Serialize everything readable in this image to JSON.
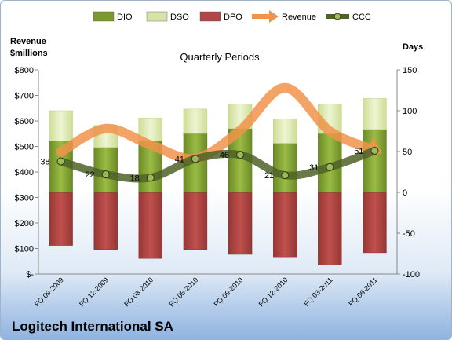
{
  "company": "Logitech International SA",
  "chart_data": {
    "type": "bar",
    "title": "Quarterly Periods",
    "left_axis_title": [
      "Revenue",
      "$millions"
    ],
    "right_axis_title": "Days",
    "categories": [
      "FQ 09-2009",
      "FQ 12-2009",
      "FQ 03-2010",
      "FQ 06-2010",
      "FQ 09-2010",
      "FQ 12-2010",
      "FQ 03-2011",
      "FQ 06-2011"
    ],
    "left_ticks": [
      "$-",
      "$100",
      "$200",
      "$300",
      "$400",
      "$500",
      "$600",
      "$700",
      "$800"
    ],
    "left_ylim": [
      0,
      800
    ],
    "right_ticks": [
      "-100",
      "-50",
      "0",
      "50",
      "100",
      "150"
    ],
    "right_ylim": [
      -100,
      150
    ],
    "legend": [
      "DIO",
      "DSO",
      "DPO",
      "Revenue",
      "CCC"
    ],
    "series": [
      {
        "name": "DIO",
        "axis": "right",
        "kind": "bar-stacked-up",
        "color": "#7a9a2e",
        "values": [
          63,
          55,
          63,
          72,
          78,
          60,
          72,
          77
        ]
      },
      {
        "name": "DSO",
        "axis": "right",
        "kind": "bar-stacked-up",
        "color": "#d7e4a8",
        "values": [
          37,
          27,
          28,
          30,
          30,
          30,
          36,
          38
        ]
      },
      {
        "name": "DPO",
        "axis": "right",
        "kind": "bar-down",
        "color": "#b34745",
        "values": [
          -65,
          -70,
          -81,
          -70,
          -76,
          -79,
          -89,
          -74
        ]
      },
      {
        "name": "Revenue",
        "axis": "left",
        "kind": "line",
        "color": "#f0934a",
        "values": [
          478,
          570,
          506,
          453,
          563,
          730,
          560,
          486
        ]
      },
      {
        "name": "CCC",
        "axis": "right",
        "kind": "line",
        "color": "#4f6228",
        "values": [
          38,
          22,
          18,
          41,
          46,
          21,
          31,
          51
        ]
      }
    ],
    "ccc_labels": [
      "38",
      "22",
      "18",
      "41",
      "46",
      "21",
      "31",
      "51"
    ]
  }
}
